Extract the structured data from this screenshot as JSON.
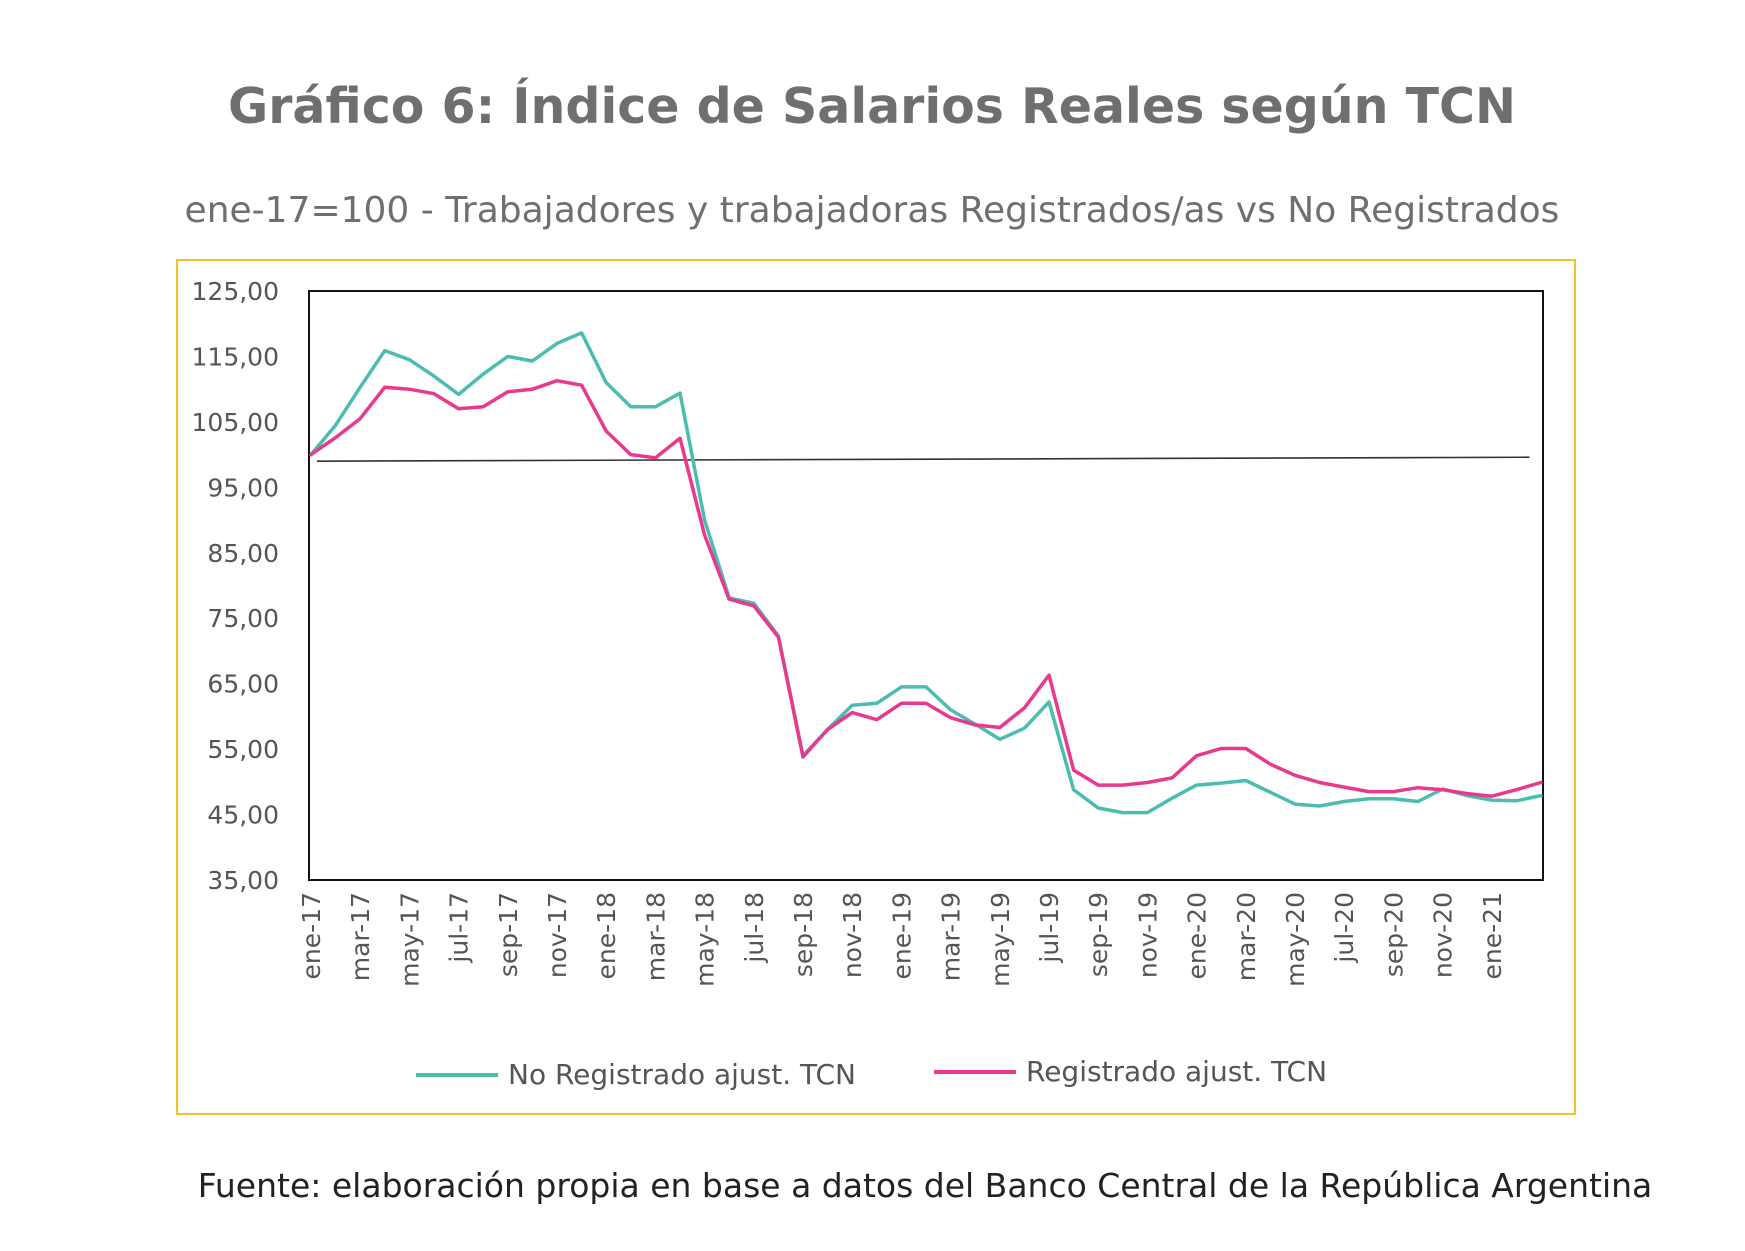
{
  "chart_data": {
    "type": "line",
    "title": "Gráfico 6: Índice de Salarios Reales según TCN",
    "subtitle": "ene-17=100 - Trabajadores y trabajadoras Registrados/as vs No Registrados",
    "source": "Fuente: elaboración propia en base a datos del Banco Central de la República Argentina",
    "ylim": [
      35,
      125
    ],
    "yticks": [
      "125,00",
      "115,00",
      "105,00",
      "95,00",
      "85,00",
      "75,00",
      "65,00",
      "55,00",
      "45,00",
      "35,00"
    ],
    "ytick_values": [
      125,
      115,
      105,
      95,
      85,
      75,
      65,
      55,
      45,
      35
    ],
    "xtick_labels": [
      "ene-17",
      "mar-17",
      "may-17",
      "jul-17",
      "sep-17",
      "nov-17",
      "ene-18",
      "mar-18",
      "may-18",
      "jul-18",
      "sep-18",
      "nov-18",
      "ene-19",
      "mar-19",
      "may-19",
      "jul-19",
      "sep-19",
      "nov-19",
      "ene-20",
      "mar-20",
      "may-20",
      "jul-20",
      "sep-20",
      "nov-20",
      "ene-21"
    ],
    "categories": [
      "ene-17",
      "feb-17",
      "mar-17",
      "abr-17",
      "may-17",
      "jun-17",
      "jul-17",
      "ago-17",
      "sep-17",
      "oct-17",
      "nov-17",
      "dic-17",
      "ene-18",
      "feb-18",
      "mar-18",
      "abr-18",
      "may-18",
      "jun-18",
      "jul-18",
      "ago-18",
      "sep-18",
      "oct-18",
      "nov-18",
      "dic-18",
      "ene-19",
      "feb-19",
      "mar-19",
      "abr-19",
      "may-19",
      "jun-19",
      "jul-19",
      "ago-19",
      "sep-19",
      "oct-19",
      "nov-19",
      "dic-19",
      "ene-20",
      "feb-20",
      "mar-20",
      "abr-20",
      "may-20",
      "jun-20",
      "jul-20",
      "ago-20",
      "sep-20",
      "oct-20",
      "nov-20",
      "dic-20",
      "ene-21",
      "feb-21",
      "mar-21"
    ],
    "series": [
      {
        "name": "No Registrado ajust. TCN",
        "color": "#4dbcb0",
        "values": [
          100.0,
          104.5,
          110.3,
          115.9,
          114.5,
          112.0,
          109.2,
          112.3,
          115.0,
          114.3,
          117.0,
          118.6,
          111.0,
          107.3,
          107.3,
          109.4,
          90.0,
          78.1,
          77.3,
          72.3,
          54.0,
          58.0,
          61.7,
          62.0,
          64.5,
          64.5,
          61.0,
          58.8,
          56.5,
          58.2,
          62.2,
          48.8,
          46.0,
          45.3,
          45.3,
          47.5,
          49.5,
          49.8,
          50.2,
          48.4,
          46.6,
          46.3,
          47.0,
          47.4,
          47.4,
          47.0,
          48.9,
          47.9,
          47.2,
          47.1,
          47.9
        ]
      },
      {
        "name": "Registrado ajust. TCN",
        "color": "#e8398e",
        "values": [
          100.0,
          102.6,
          105.5,
          110.3,
          110.0,
          109.3,
          107.0,
          107.3,
          109.6,
          110.0,
          111.3,
          110.6,
          103.6,
          100.0,
          99.5,
          102.5,
          87.7,
          77.9,
          76.9,
          72.1,
          53.8,
          58.0,
          60.6,
          59.5,
          62.0,
          62.0,
          59.8,
          58.7,
          58.3,
          61.3,
          66.3,
          51.8,
          49.5,
          49.5,
          49.9,
          50.6,
          54.0,
          55.1,
          55.1,
          52.7,
          51.0,
          49.9,
          49.2,
          48.5,
          48.5,
          49.1,
          48.8,
          48.2,
          47.8,
          48.8,
          49.9
        ]
      }
    ],
    "reference_line": {
      "values": [
        99.0,
        99.6
      ],
      "color": "#333333"
    },
    "frame_color": "#f2c12e",
    "legend": {
      "placement": "bottom"
    },
    "grid": false
  }
}
